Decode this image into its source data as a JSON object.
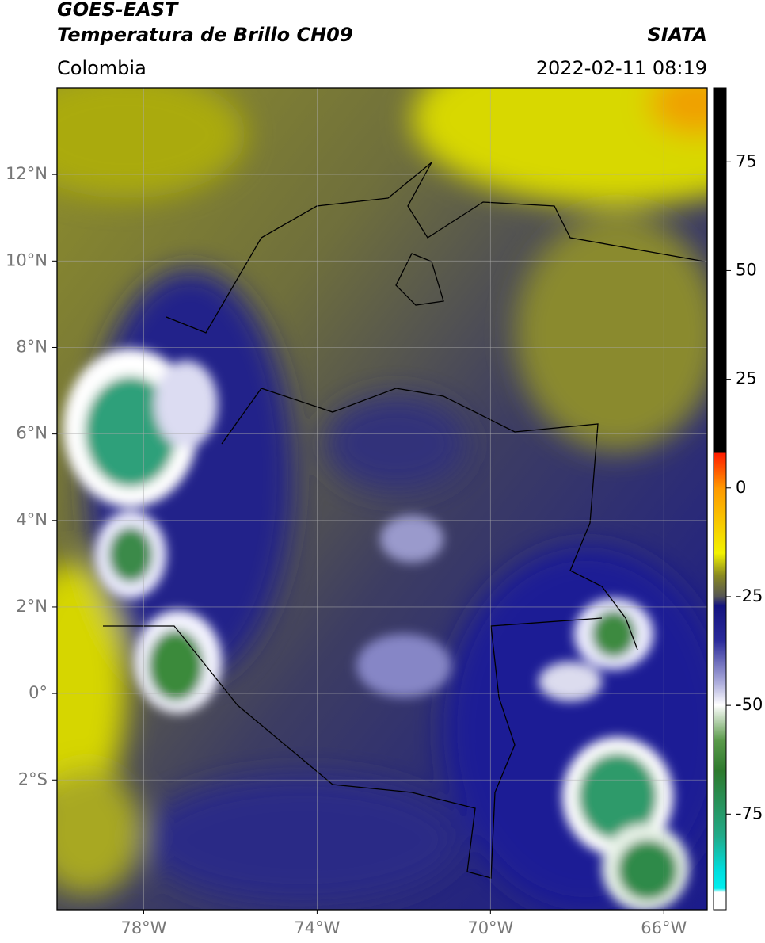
{
  "header": {
    "title": "GOES-EAST",
    "subtitle": "Temperatura de Brillo CH09",
    "source": "SIATA",
    "region": "Colombia",
    "datetime": "2022-02-11 08:19"
  },
  "map": {
    "xlim": [
      -80,
      -65
    ],
    "ylim": [
      -5,
      14
    ],
    "xticks": [
      {
        "value": -78,
        "label": "78°W"
      },
      {
        "value": -74,
        "label": "74°W"
      },
      {
        "value": -70,
        "label": "70°W"
      },
      {
        "value": -66,
        "label": "66°W"
      }
    ],
    "yticks": [
      {
        "value": 12,
        "label": "12°N"
      },
      {
        "value": 10,
        "label": "10°N"
      },
      {
        "value": 8,
        "label": "8°N"
      },
      {
        "value": 6,
        "label": "6°N"
      },
      {
        "value": 4,
        "label": "4°N"
      },
      {
        "value": 2,
        "label": "2°N"
      },
      {
        "value": 0,
        "label": "0°"
      },
      {
        "value": -2,
        "label": "2°S"
      }
    ],
    "grid": true
  },
  "colorbar": {
    "lim": [
      -97,
      92
    ],
    "ticks": [
      75,
      50,
      25,
      0,
      -25,
      -50,
      -75
    ]
  }
}
